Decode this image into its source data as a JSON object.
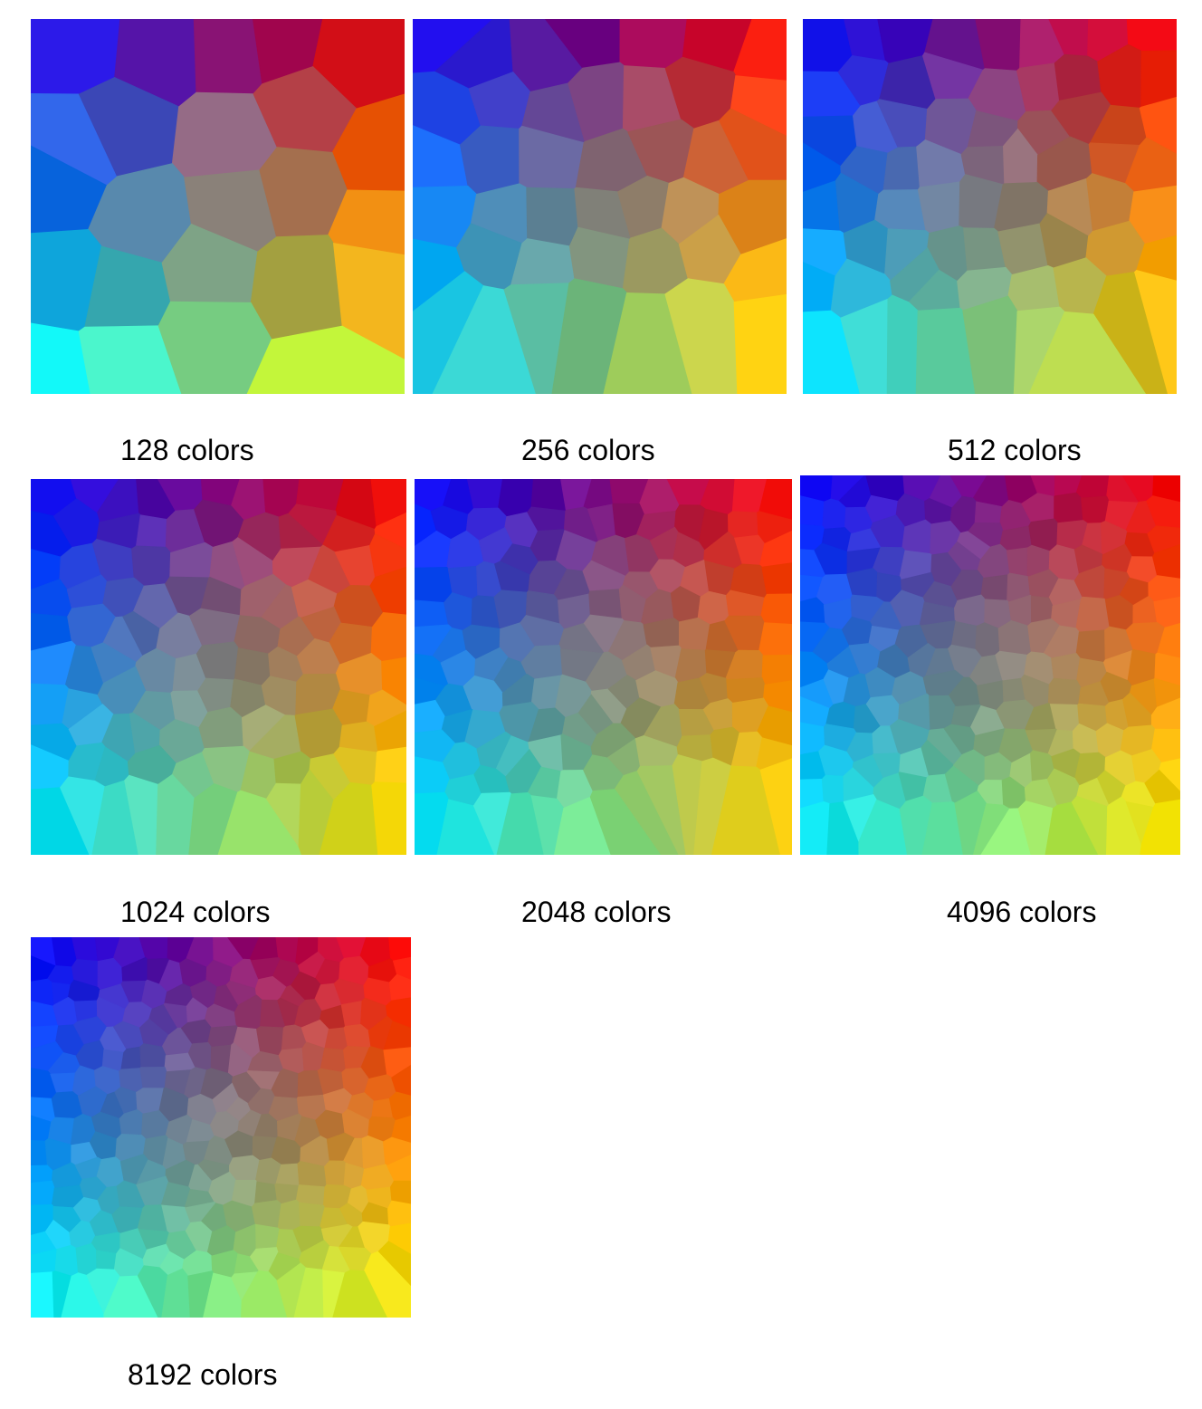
{
  "panels": [
    {
      "caption": "128 colors",
      "colors": 128
    },
    {
      "caption": "256 colors",
      "colors": 256
    },
    {
      "caption": "512 colors",
      "colors": 512
    },
    {
      "caption": "1024 colors",
      "colors": 1024
    },
    {
      "caption": "2048 colors",
      "colors": 2048
    },
    {
      "caption": "4096 colors",
      "colors": 4096
    },
    {
      "caption": "8192 colors",
      "colors": 8192
    }
  ],
  "gradient_corners": {
    "top_left": "#0000ff",
    "top_right": "#ff0000",
    "bottom_left": "#00ffff",
    "bottom_right": "#ffff00",
    "center": "#808080"
  }
}
